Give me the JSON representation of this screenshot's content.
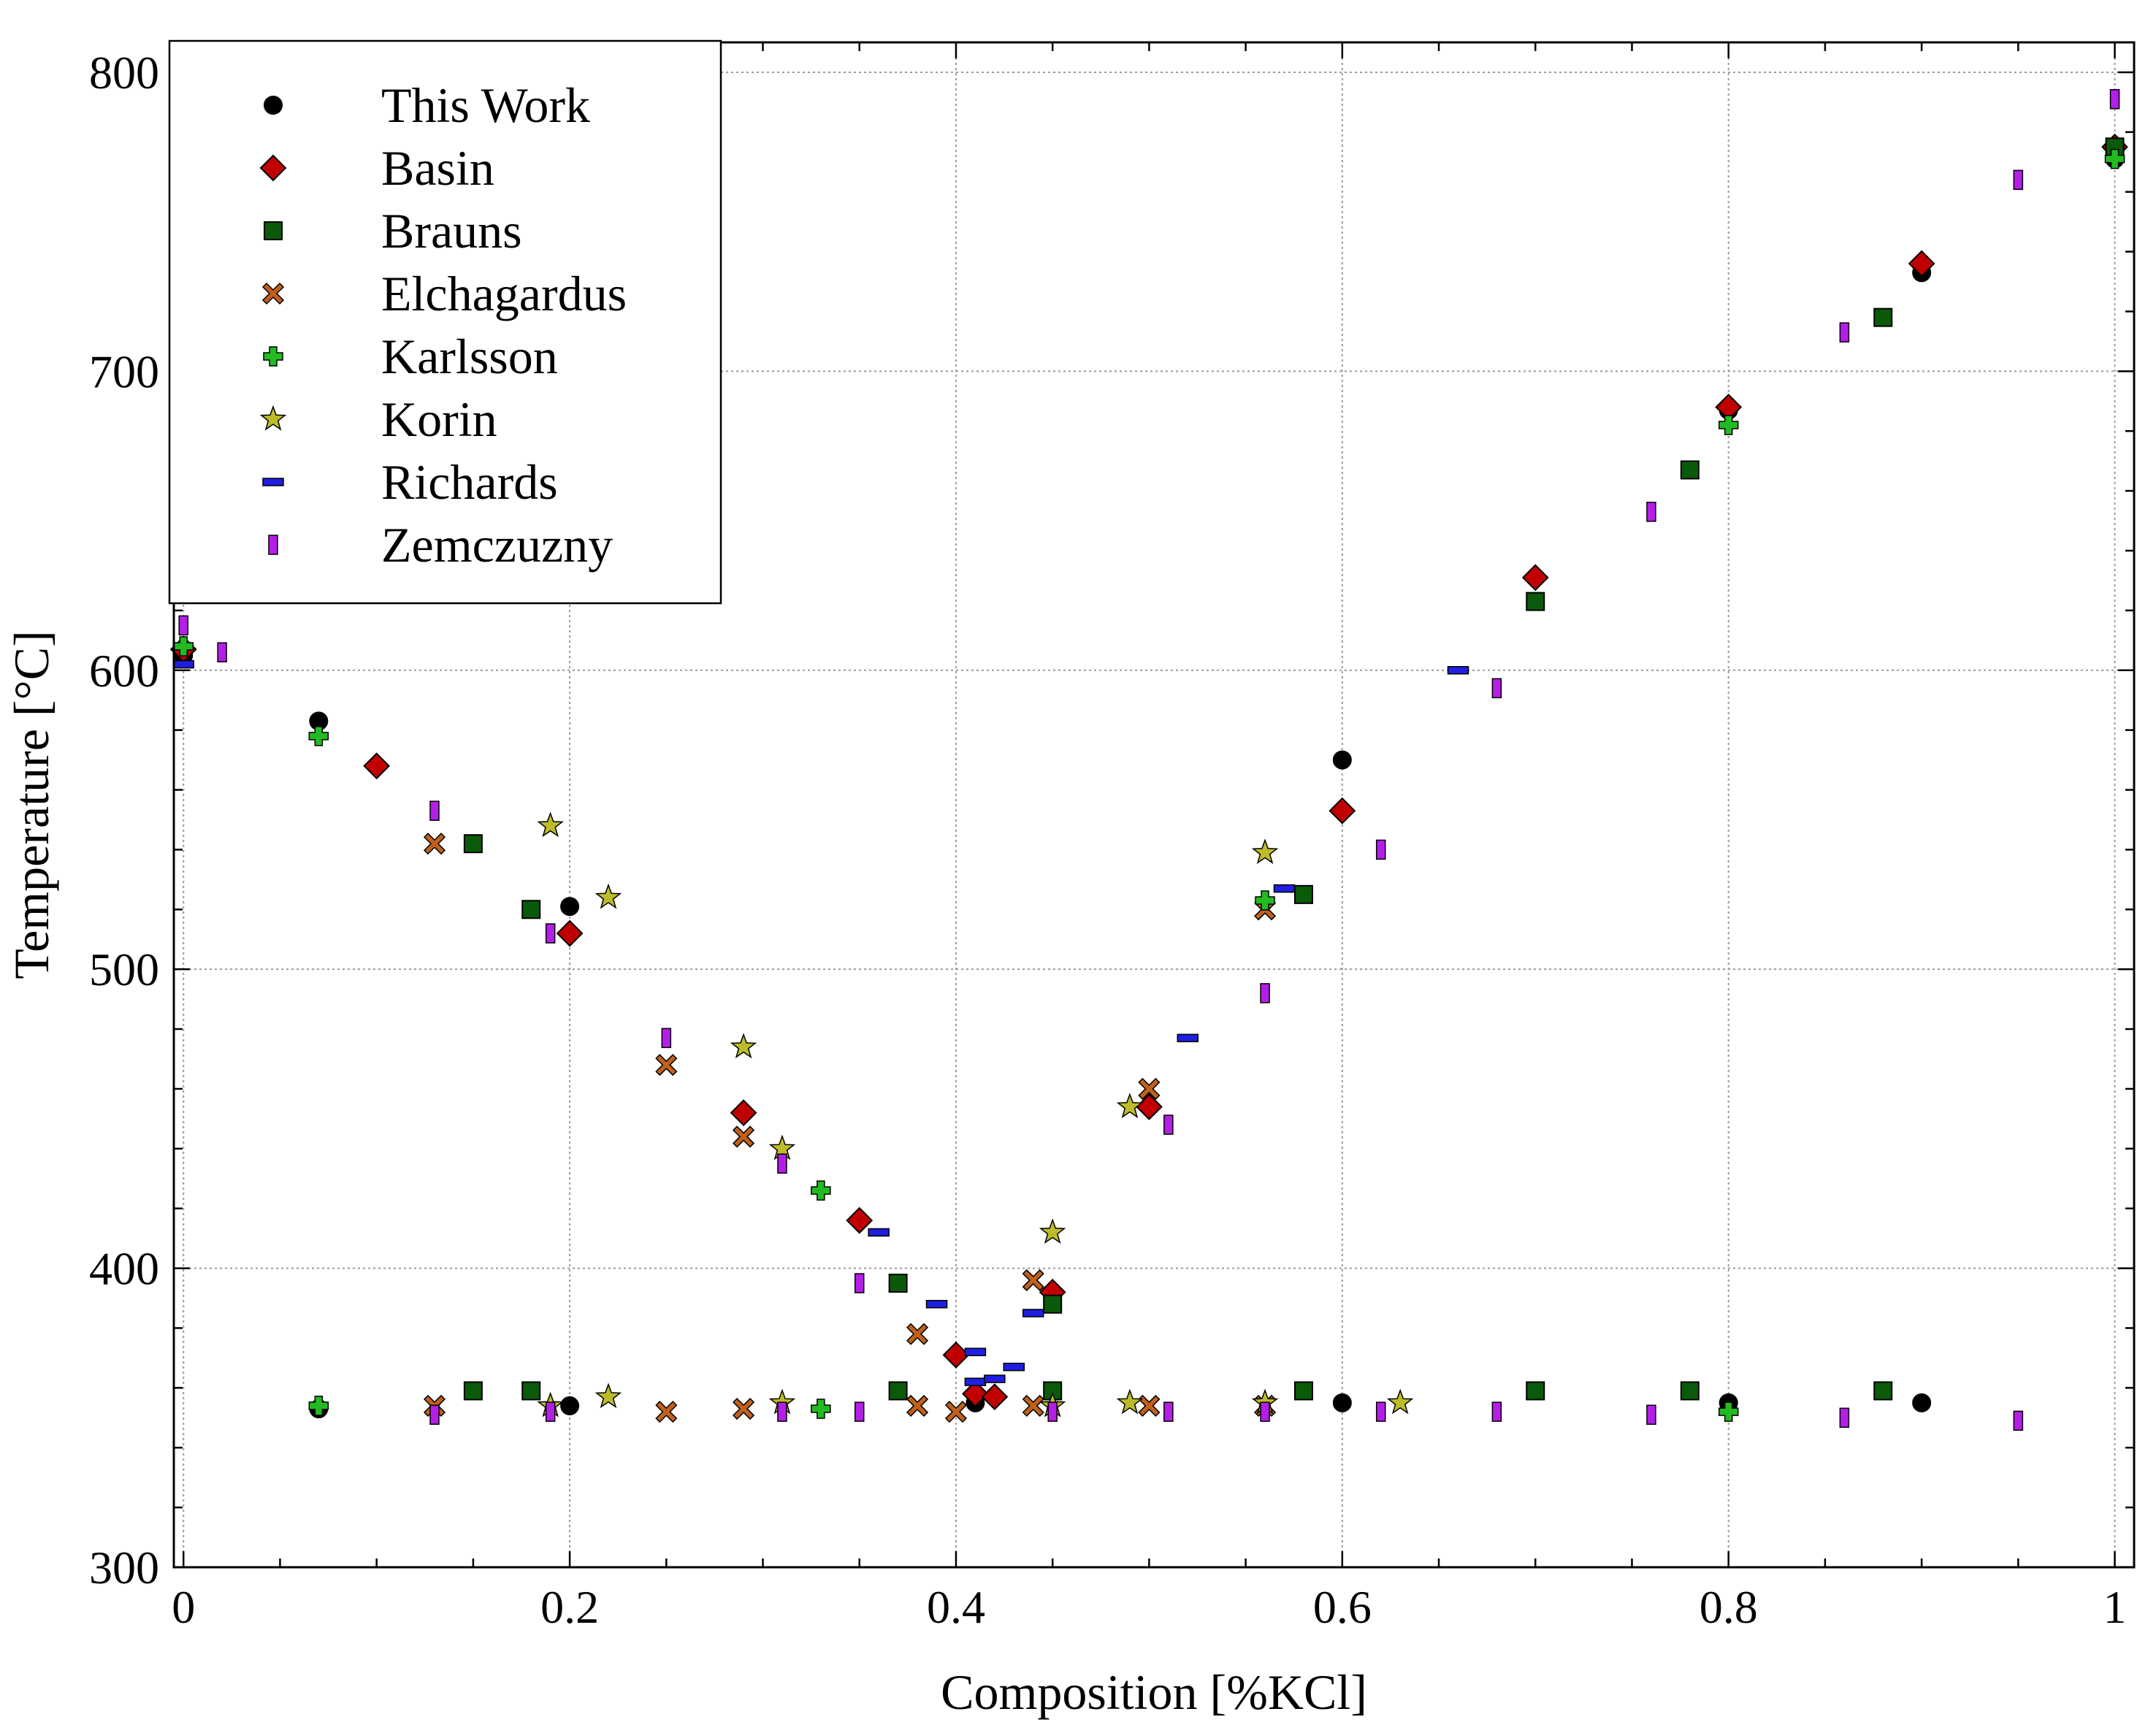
{
  "chart_data": {
    "type": "scatter",
    "xlabel": "Composition [%KCl]",
    "ylabel": "Temperature [°C]",
    "xlim": [
      -0.005,
      1.01
    ],
    "ylim": [
      300,
      810
    ],
    "xticks": [
      0,
      0.2,
      0.4,
      0.6,
      0.8,
      1
    ],
    "xtick_labels": [
      "0",
      "0.2",
      "0.4",
      "0.6",
      "0.8",
      "1"
    ],
    "yticks": [
      300,
      400,
      500,
      600,
      700,
      800
    ],
    "ytick_labels": [
      "300",
      "400",
      "500",
      "600",
      "700",
      "800"
    ],
    "grid": true,
    "legend_position": "top-left",
    "series": [
      {
        "name": "This Work",
        "marker": "circle",
        "color": "#000000",
        "points": [
          [
            0,
            605
          ],
          [
            0.07,
            583
          ],
          [
            0.2,
            521
          ],
          [
            0.6,
            570
          ],
          [
            0.8,
            687
          ],
          [
            0.9,
            733
          ],
          [
            1,
            771
          ],
          [
            0.07,
            353
          ],
          [
            0.2,
            354
          ],
          [
            0.41,
            355
          ],
          [
            0.6,
            355
          ],
          [
            0.8,
            355
          ],
          [
            0.9,
            355
          ]
        ]
      },
      {
        "name": "Basin",
        "marker": "diamond",
        "color": "#c00000",
        "points": [
          [
            0,
            607
          ],
          [
            0.1,
            568
          ],
          [
            0.2,
            512
          ],
          [
            0.29,
            452
          ],
          [
            0.35,
            416
          ],
          [
            0.4,
            371
          ],
          [
            0.41,
            358
          ],
          [
            0.42,
            357
          ],
          [
            0.45,
            392
          ],
          [
            0.5,
            454
          ],
          [
            0.6,
            553
          ],
          [
            0.7,
            631
          ],
          [
            0.8,
            688
          ],
          [
            0.9,
            736
          ],
          [
            1,
            775
          ]
        ]
      },
      {
        "name": "Brauns",
        "marker": "square",
        "color": "#0a5a0a",
        "points": [
          [
            0.15,
            542
          ],
          [
            0.18,
            520
          ],
          [
            0.37,
            395
          ],
          [
            0.45,
            388
          ],
          [
            0.58,
            525
          ],
          [
            0.7,
            623
          ],
          [
            0.78,
            667
          ],
          [
            0.88,
            718
          ],
          [
            1,
            775
          ],
          [
            0.15,
            359
          ],
          [
            0.18,
            359
          ],
          [
            0.37,
            359
          ],
          [
            0.45,
            359
          ],
          [
            0.58,
            359
          ],
          [
            0.7,
            359
          ],
          [
            0.78,
            359
          ],
          [
            0.88,
            359
          ]
        ]
      },
      {
        "name": "Elchagardus",
        "marker": "x",
        "color": "#c0601a",
        "points": [
          [
            0.13,
            542
          ],
          [
            0.25,
            468
          ],
          [
            0.29,
            444
          ],
          [
            0.38,
            378
          ],
          [
            0.44,
            396
          ],
          [
            0.5,
            460
          ],
          [
            0.56,
            520
          ],
          [
            0.13,
            354
          ],
          [
            0.25,
            352
          ],
          [
            0.29,
            353
          ],
          [
            0.38,
            354
          ],
          [
            0.4,
            352
          ],
          [
            0.44,
            354
          ],
          [
            0.5,
            354
          ],
          [
            0.56,
            354
          ]
        ]
      },
      {
        "name": "Karlsson",
        "marker": "plus",
        "color": "#22bb22",
        "points": [
          [
            0,
            608
          ],
          [
            0.07,
            578
          ],
          [
            0.33,
            426
          ],
          [
            0.56,
            523
          ],
          [
            0.8,
            682
          ],
          [
            1,
            771
          ],
          [
            0.07,
            354
          ],
          [
            0.33,
            353
          ],
          [
            0.8,
            352
          ]
        ]
      },
      {
        "name": "Korin",
        "marker": "star",
        "color": "#bcbc2a",
        "points": [
          [
            0.19,
            548
          ],
          [
            0.22,
            524
          ],
          [
            0.29,
            474
          ],
          [
            0.31,
            440
          ],
          [
            0.45,
            412
          ],
          [
            0.49,
            454
          ],
          [
            0.56,
            539
          ],
          [
            0.19,
            354
          ],
          [
            0.22,
            357
          ],
          [
            0.31,
            355
          ],
          [
            0.45,
            354
          ],
          [
            0.49,
            355
          ],
          [
            0.56,
            355
          ],
          [
            0.63,
            355
          ]
        ]
      },
      {
        "name": "Richards",
        "marker": "hbar",
        "color": "#1f1fe0",
        "points": [
          [
            0,
            602
          ],
          [
            0.36,
            412
          ],
          [
            0.39,
            388
          ],
          [
            0.41,
            372
          ],
          [
            0.41,
            362
          ],
          [
            0.42,
            363
          ],
          [
            0.43,
            367
          ],
          [
            0.44,
            385
          ],
          [
            0.52,
            477
          ],
          [
            0.57,
            527
          ],
          [
            0.66,
            600
          ]
        ]
      },
      {
        "name": "Zemczuzny",
        "marker": "vbar",
        "color": "#b31fe6",
        "points": [
          [
            0,
            615
          ],
          [
            0.02,
            606
          ],
          [
            0.13,
            553
          ],
          [
            0.19,
            512
          ],
          [
            0.25,
            477
          ],
          [
            0.31,
            435
          ],
          [
            0.35,
            395
          ],
          [
            0.51,
            448
          ],
          [
            0.56,
            492
          ],
          [
            0.62,
            540
          ],
          [
            0.68,
            594
          ],
          [
            0.76,
            653
          ],
          [
            0.86,
            713
          ],
          [
            0.95,
            764
          ],
          [
            1,
            791
          ],
          [
            0.13,
            351
          ],
          [
            0.19,
            352
          ],
          [
            0.31,
            352
          ],
          [
            0.35,
            352
          ],
          [
            0.45,
            352
          ],
          [
            0.51,
            352
          ],
          [
            0.56,
            352
          ],
          [
            0.62,
            352
          ],
          [
            0.68,
            352
          ],
          [
            0.76,
            351
          ],
          [
            0.86,
            350
          ],
          [
            0.95,
            349
          ]
        ]
      }
    ]
  }
}
